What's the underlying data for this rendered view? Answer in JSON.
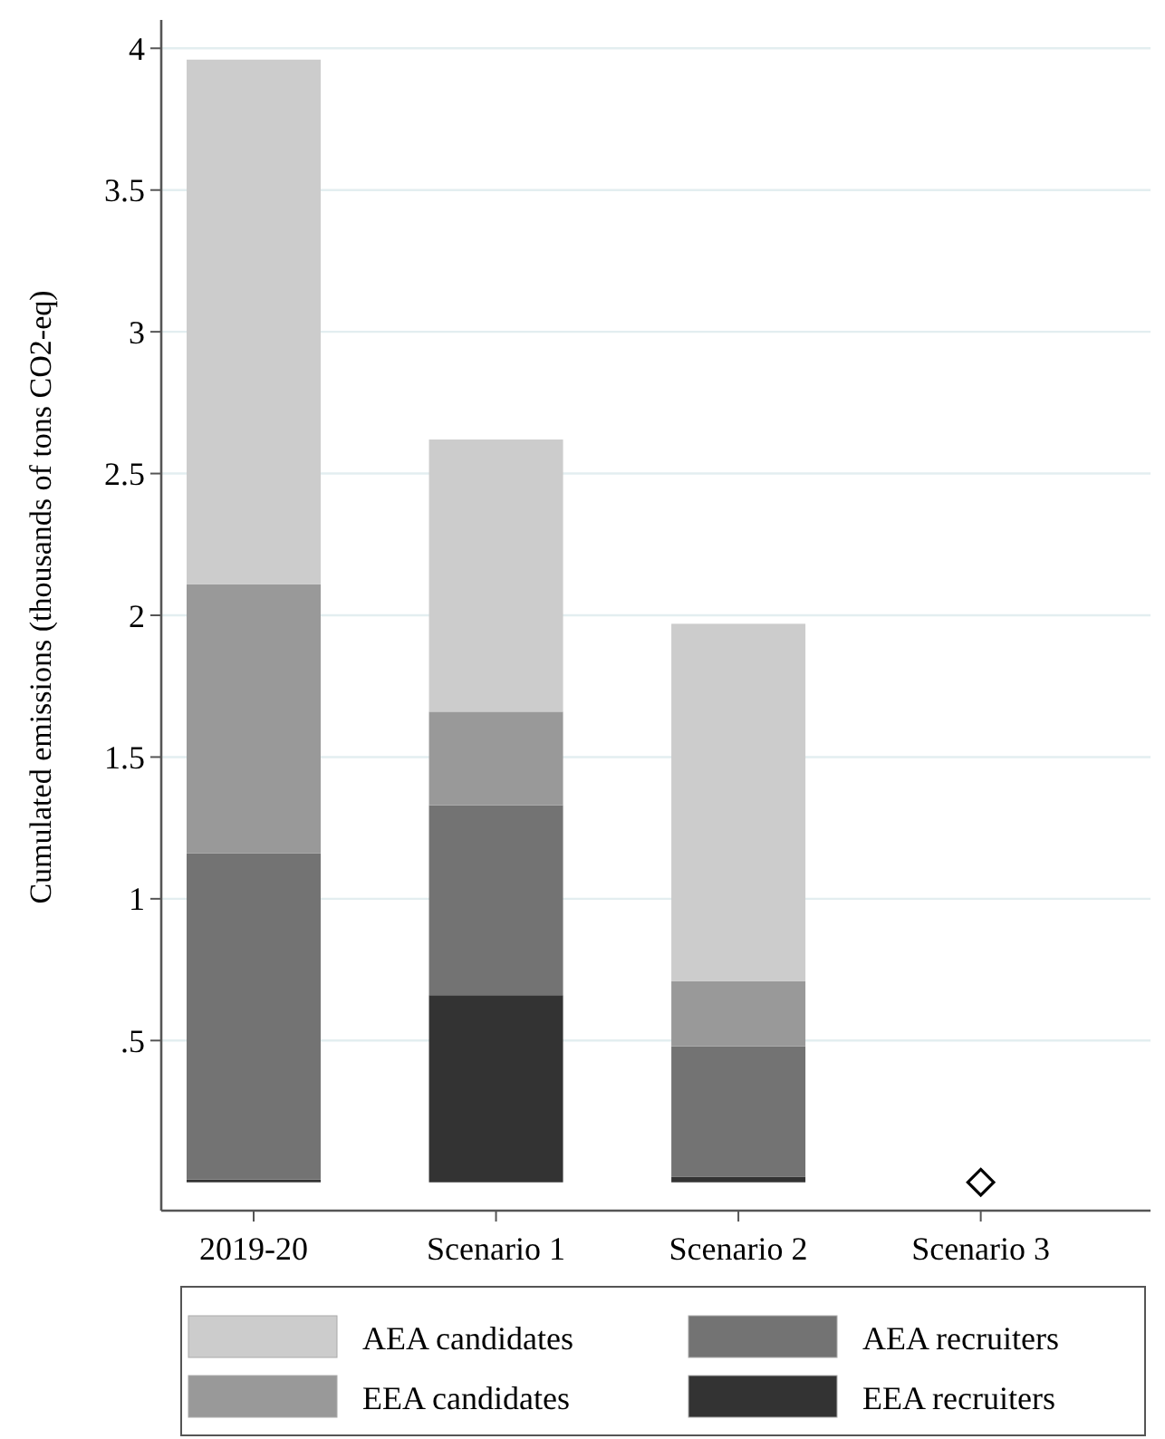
{
  "chart_data": {
    "type": "bar",
    "stacked": true,
    "ylabel": "Cumulated emissions (thousands of tons CO2-eq)",
    "categories": [
      "2019-20",
      "Scenario 1",
      "Scenario 2",
      "Scenario 3"
    ],
    "series": [
      {
        "name": "EEA recruiters",
        "color": "#333333",
        "values": [
          0.01,
          0.66,
          0.02,
          0
        ]
      },
      {
        "name": "AEA recruiters",
        "color": "#737373",
        "values": [
          1.15,
          0.67,
          0.46,
          0
        ]
      },
      {
        "name": "EEA candidates",
        "color": "#999999",
        "values": [
          0.95,
          0.33,
          0.23,
          0
        ]
      },
      {
        "name": "AEA candidates",
        "color": "#cccccc",
        "values": [
          1.85,
          0.96,
          1.26,
          0
        ]
      },
      {
        "type": "scatter",
        "marker": "diamond",
        "color": "#000000",
        "x": [
          "Scenario 3"
        ],
        "values": [
          0
        ]
      }
    ],
    "ylim": [
      -0.1,
      4.1
    ],
    "yticks": [
      {
        "value": 0.5,
        "label": ".5"
      },
      1,
      1.5,
      2,
      2.5,
      3,
      3.5,
      4
    ],
    "grid": "y",
    "legend": "bottom"
  }
}
